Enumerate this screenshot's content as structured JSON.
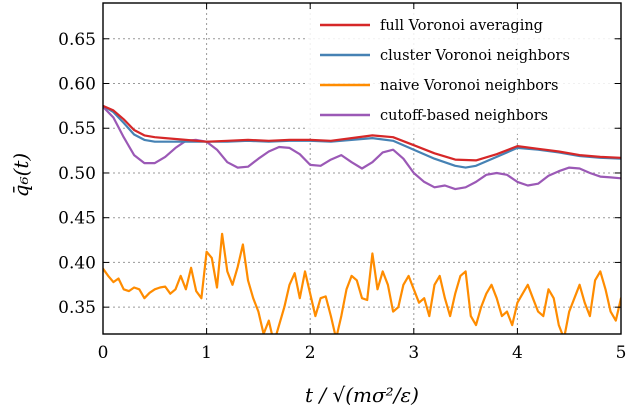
{
  "chart_data": {
    "type": "line",
    "xlabel": "t / √(mσ²/ε)",
    "ylabel": "q̄₆(t)",
    "xlim": [
      0,
      5
    ],
    "ylim": [
      0.32,
      0.69
    ],
    "x_ticks": [
      "0",
      "1",
      "2",
      "3",
      "4",
      "5"
    ],
    "y_ticks": [
      "0.35",
      "0.40",
      "0.45",
      "0.50",
      "0.55",
      "0.60",
      "0.65"
    ],
    "x_tick_values": [
      0,
      1,
      2,
      3,
      4,
      5
    ],
    "y_tick_values": [
      0.35,
      0.4,
      0.45,
      0.5,
      0.55,
      0.6,
      0.65
    ],
    "grid": true,
    "legend_position": "top-right",
    "series": [
      {
        "name": "full Voronoi averaging",
        "color": "#d62728",
        "x": [
          0,
          0.1,
          0.2,
          0.3,
          0.4,
          0.5,
          0.6,
          0.8,
          1.0,
          1.2,
          1.4,
          1.6,
          1.8,
          2.0,
          2.2,
          2.4,
          2.6,
          2.8,
          3.0,
          3.2,
          3.4,
          3.6,
          3.8,
          4.0,
          4.2,
          4.4,
          4.6,
          4.8,
          5.0
        ],
        "y": [
          0.575,
          0.57,
          0.56,
          0.548,
          0.542,
          0.54,
          0.539,
          0.537,
          0.535,
          0.536,
          0.537,
          0.536,
          0.537,
          0.537,
          0.536,
          0.539,
          0.542,
          0.54,
          0.531,
          0.522,
          0.515,
          0.514,
          0.521,
          0.53,
          0.527,
          0.524,
          0.52,
          0.518,
          0.517
        ]
      },
      {
        "name": "cluster Voronoi neighbors",
        "color": "#4682b4",
        "x": [
          0,
          0.1,
          0.2,
          0.3,
          0.4,
          0.5,
          0.6,
          0.8,
          1.0,
          1.2,
          1.4,
          1.6,
          1.8,
          2.0,
          2.2,
          2.4,
          2.6,
          2.8,
          3.0,
          3.2,
          3.4,
          3.5,
          3.6,
          3.8,
          4.0,
          4.2,
          4.4,
          4.6,
          4.8,
          5.0
        ],
        "y": [
          0.575,
          0.568,
          0.556,
          0.543,
          0.537,
          0.535,
          0.535,
          0.535,
          0.535,
          0.535,
          0.536,
          0.535,
          0.536,
          0.536,
          0.535,
          0.537,
          0.539,
          0.536,
          0.526,
          0.516,
          0.508,
          0.506,
          0.508,
          0.518,
          0.528,
          0.526,
          0.523,
          0.519,
          0.517,
          0.516
        ]
      },
      {
        "name": "naive Voronoi neighbors",
        "color": "#ff8c00",
        "x": [
          0,
          0.05,
          0.1,
          0.15,
          0.2,
          0.25,
          0.3,
          0.35,
          0.4,
          0.45,
          0.5,
          0.55,
          0.6,
          0.65,
          0.7,
          0.75,
          0.8,
          0.85,
          0.9,
          0.95,
          1.0,
          1.05,
          1.1,
          1.15,
          1.2,
          1.25,
          1.3,
          1.35,
          1.4,
          1.45,
          1.5,
          1.55,
          1.6,
          1.65,
          1.7,
          1.75,
          1.8,
          1.85,
          1.9,
          1.95,
          2.0,
          2.05,
          2.1,
          2.15,
          2.2,
          2.25,
          2.3,
          2.35,
          2.4,
          2.45,
          2.5,
          2.55,
          2.6,
          2.65,
          2.7,
          2.75,
          2.8,
          2.85,
          2.9,
          2.95,
          3.0,
          3.05,
          3.1,
          3.15,
          3.2,
          3.25,
          3.3,
          3.35,
          3.4,
          3.45,
          3.5,
          3.55,
          3.6,
          3.65,
          3.7,
          3.75,
          3.8,
          3.85,
          3.9,
          3.95,
          4.0,
          4.05,
          4.1,
          4.15,
          4.2,
          4.25,
          4.3,
          4.35,
          4.4,
          4.45,
          4.5,
          4.55,
          4.6,
          4.65,
          4.7,
          4.75,
          4.8,
          4.85,
          4.9,
          4.95,
          5.0
        ],
        "y": [
          0.393,
          0.385,
          0.378,
          0.382,
          0.37,
          0.368,
          0.372,
          0.37,
          0.36,
          0.366,
          0.37,
          0.372,
          0.373,
          0.365,
          0.37,
          0.385,
          0.37,
          0.394,
          0.368,
          0.36,
          0.412,
          0.405,
          0.372,
          0.432,
          0.39,
          0.375,
          0.395,
          0.42,
          0.38,
          0.36,
          0.345,
          0.32,
          0.335,
          0.31,
          0.33,
          0.35,
          0.375,
          0.388,
          0.36,
          0.39,
          0.365,
          0.34,
          0.36,
          0.362,
          0.34,
          0.315,
          0.34,
          0.37,
          0.385,
          0.38,
          0.36,
          0.358,
          0.41,
          0.37,
          0.39,
          0.375,
          0.345,
          0.35,
          0.375,
          0.385,
          0.37,
          0.355,
          0.36,
          0.34,
          0.375,
          0.385,
          0.36,
          0.34,
          0.365,
          0.385,
          0.39,
          0.34,
          0.33,
          0.35,
          0.365,
          0.375,
          0.36,
          0.34,
          0.345,
          0.33,
          0.355,
          0.365,
          0.375,
          0.36,
          0.345,
          0.34,
          0.37,
          0.36,
          0.33,
          0.315,
          0.345,
          0.36,
          0.375,
          0.355,
          0.34,
          0.38,
          0.39,
          0.37,
          0.345,
          0.335,
          0.36
        ]
      },
      {
        "name": "cutoff-based neighbors",
        "color": "#9b59b6",
        "x": [
          0,
          0.1,
          0.2,
          0.3,
          0.4,
          0.5,
          0.6,
          0.7,
          0.8,
          0.9,
          1.0,
          1.1,
          1.2,
          1.3,
          1.4,
          1.5,
          1.6,
          1.7,
          1.8,
          1.9,
          2.0,
          2.1,
          2.2,
          2.3,
          2.4,
          2.5,
          2.6,
          2.7,
          2.8,
          2.9,
          3.0,
          3.1,
          3.2,
          3.3,
          3.4,
          3.5,
          3.6,
          3.7,
          3.8,
          3.9,
          4.0,
          4.1,
          4.2,
          4.3,
          4.4,
          4.5,
          4.6,
          4.7,
          4.8,
          4.9,
          5.0
        ],
        "y": [
          0.574,
          0.562,
          0.54,
          0.52,
          0.511,
          0.511,
          0.518,
          0.528,
          0.536,
          0.537,
          0.535,
          0.526,
          0.512,
          0.506,
          0.507,
          0.516,
          0.524,
          0.529,
          0.528,
          0.521,
          0.509,
          0.508,
          0.515,
          0.52,
          0.512,
          0.505,
          0.512,
          0.523,
          0.526,
          0.516,
          0.5,
          0.49,
          0.484,
          0.486,
          0.482,
          0.484,
          0.49,
          0.498,
          0.5,
          0.498,
          0.49,
          0.486,
          0.488,
          0.497,
          0.502,
          0.506,
          0.505,
          0.5,
          0.496,
          0.495,
          0.494
        ]
      }
    ]
  }
}
